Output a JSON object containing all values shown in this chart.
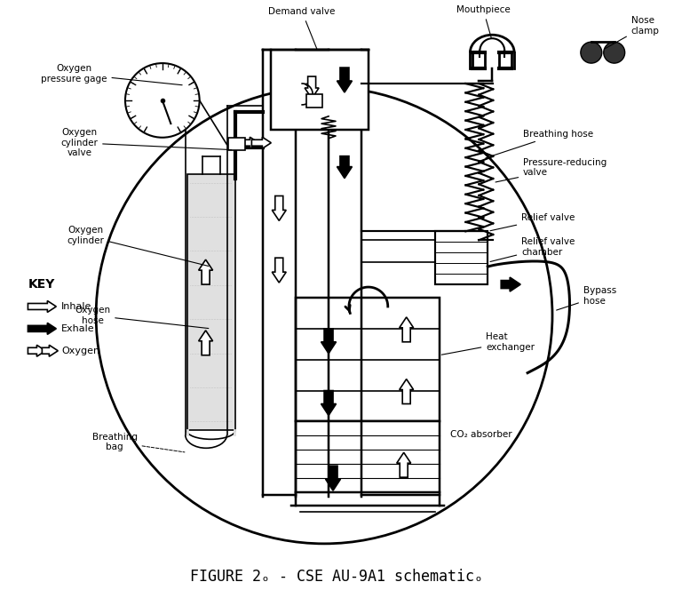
{
  "title": "FIGURE 2ₒ - CSE AU-9A1 schematicₒ",
  "bg_color": "#ffffff",
  "line_color": "#000000",
  "fig_width": 7.59,
  "fig_height": 6.73,
  "dpi": 100,
  "labels": {
    "demand_valve": "Demand valve",
    "mouthpiece": "Mouthpiece",
    "nose_clamp": "Nose\nclamp",
    "oxygen_pressure_gage": "Oxygen\npressure gage",
    "oxygen_cylinder_valve": "Oxygen\ncylinder\nvalve",
    "oxygen_cylinder": "Oxygen\ncylinder",
    "oxygen_hose": "Oxygen\nhose",
    "breathing_hose": "Breathing hose",
    "pressure_reducing_valve": "Pressure-reducing\nvalve",
    "relief_valve": "Relief valve",
    "relief_valve_chamber": "Relief valve\nchamber",
    "bypass_hose": "Bypass\nhose",
    "heat_exchanger": "Heat\nexchanger",
    "co2_absorber": "CO₂ absorber",
    "breathing_bag": "Breathing\nbag",
    "key_inhale": "Inhale",
    "key_exhale": "Exhale",
    "key_oxygen": "Oxygen",
    "key_label": "KEY"
  }
}
